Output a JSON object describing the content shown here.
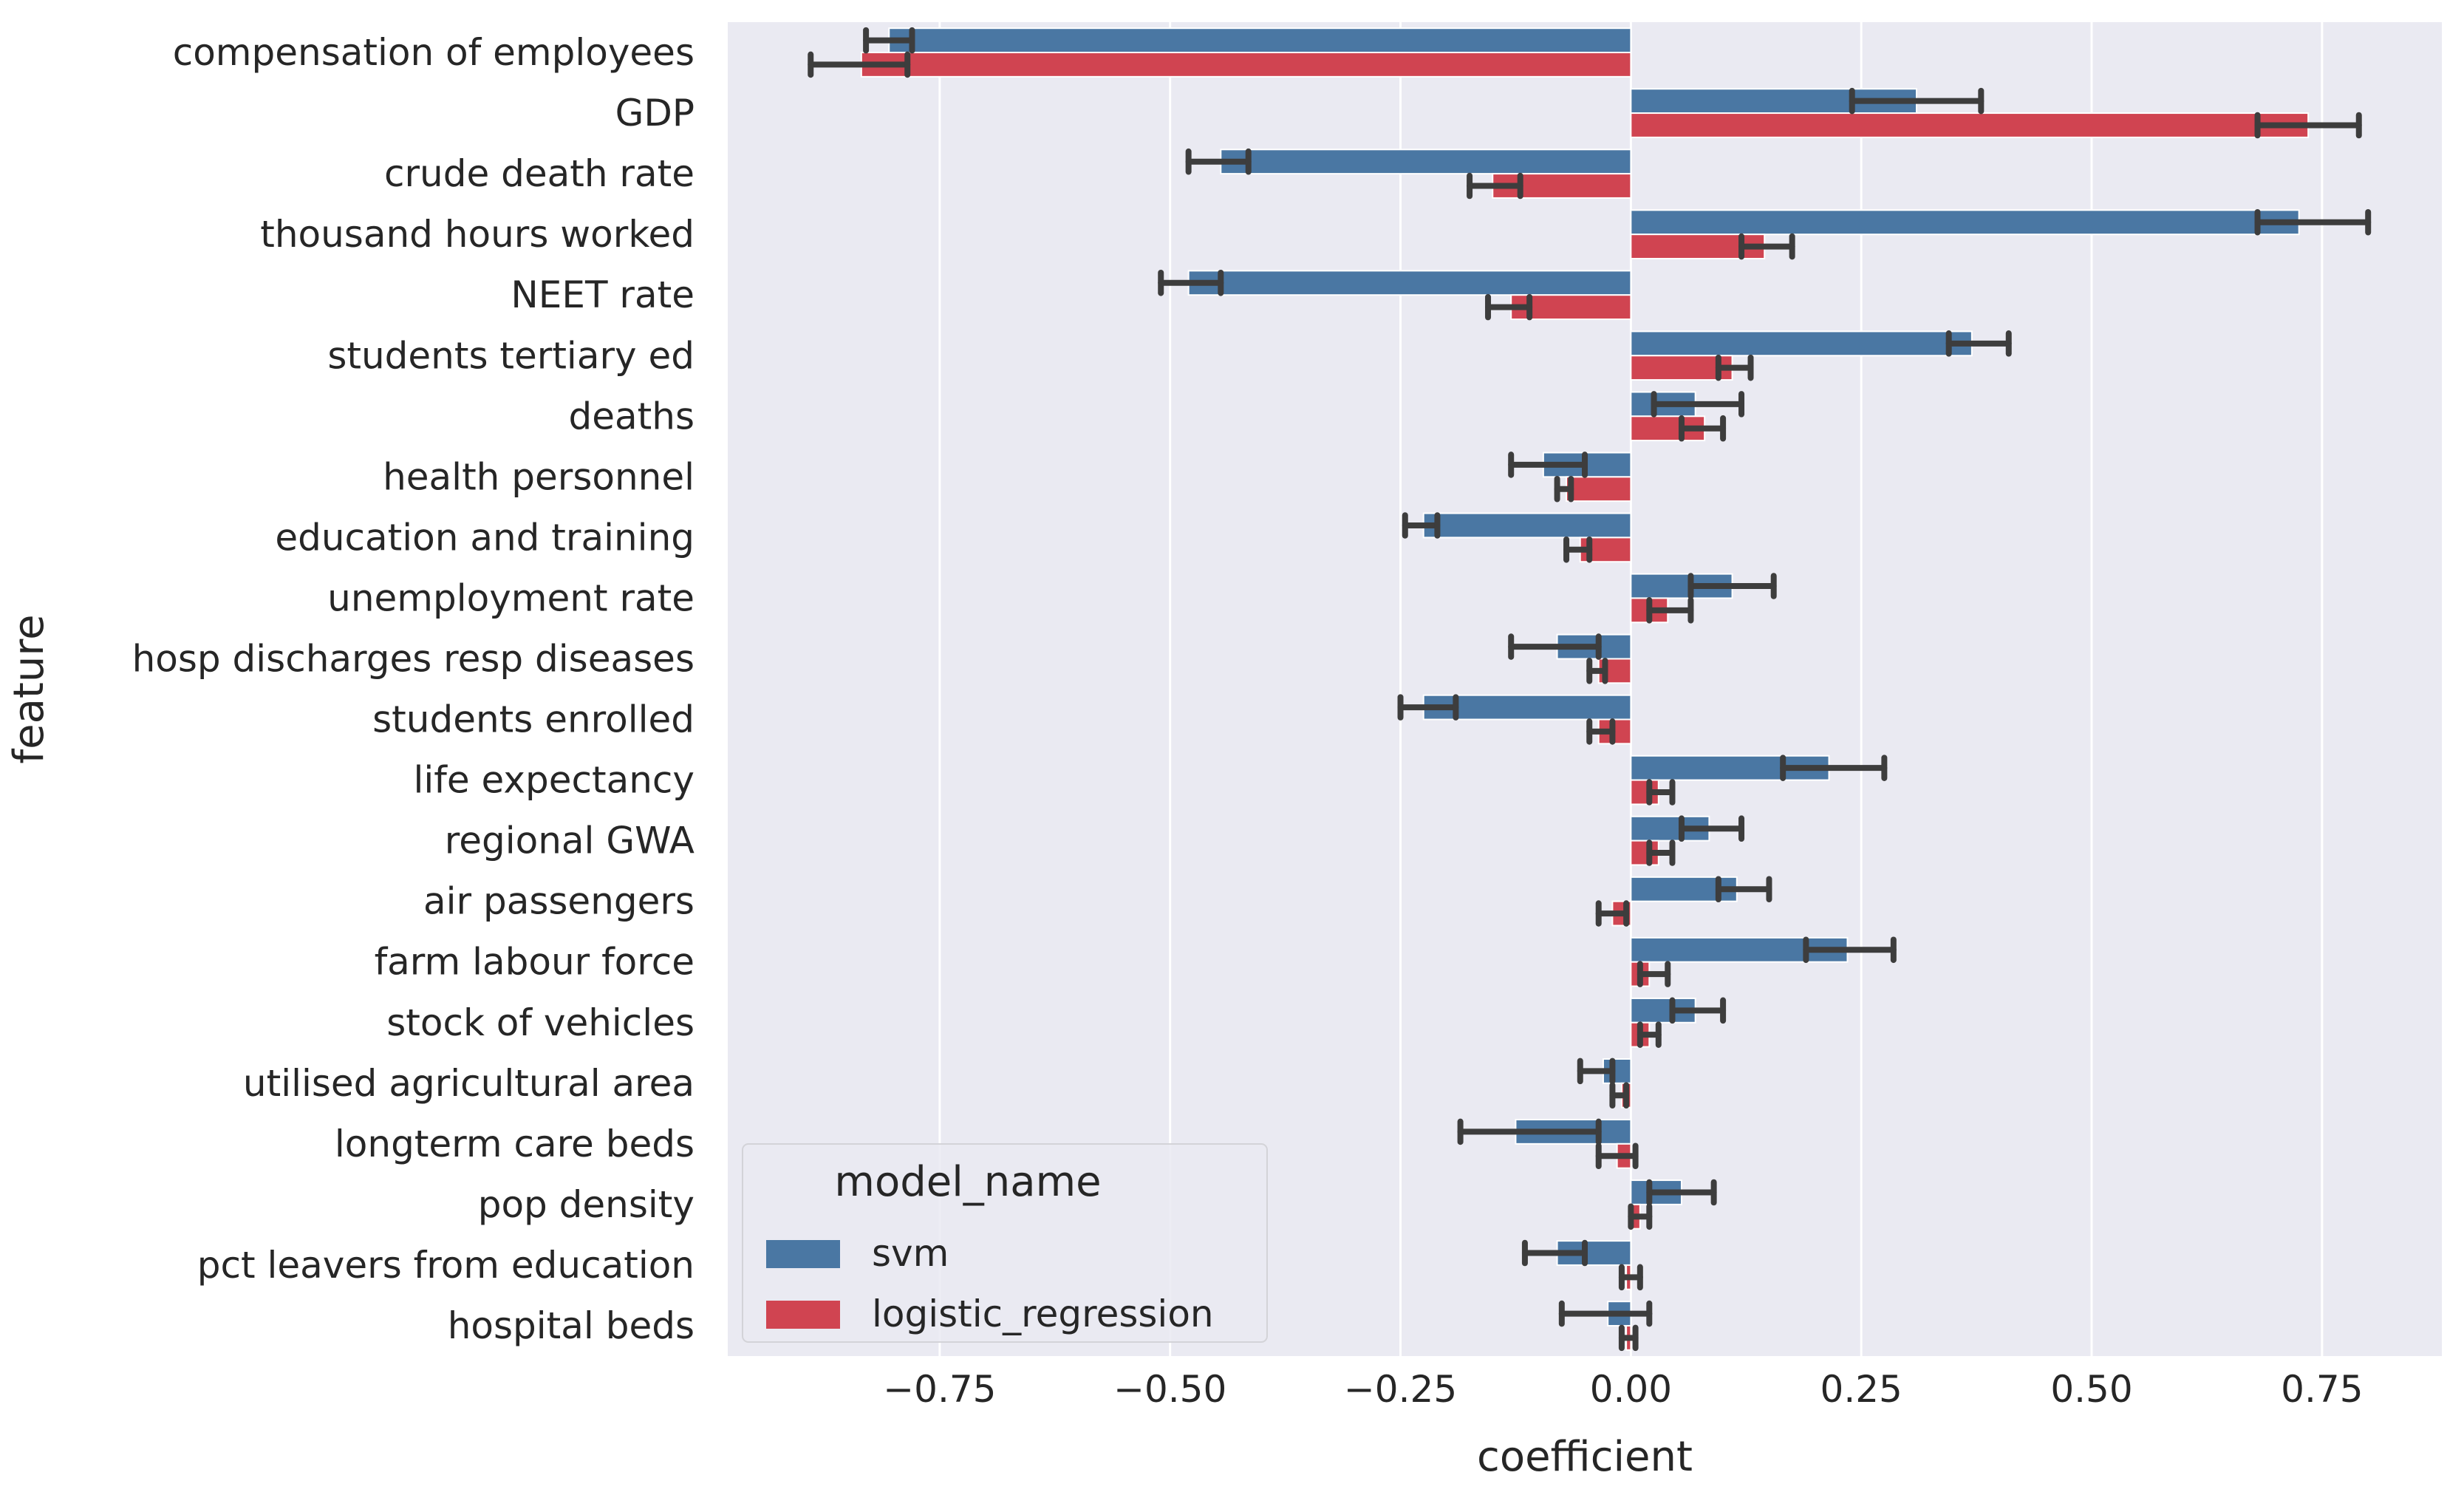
{
  "chart_data": {
    "type": "bar",
    "orientation": "horizontal",
    "xlabel": "coefficient",
    "ylabel": "feature",
    "xlim": [
      -0.98,
      0.88
    ],
    "xticks": [
      -0.75,
      -0.5,
      -0.25,
      0.0,
      0.25,
      0.5,
      0.75
    ],
    "xtick_labels": [
      "−0.75",
      "−0.50",
      "−0.25",
      "0.00",
      "0.25",
      "0.50",
      "0.75"
    ],
    "grid": true,
    "legend": {
      "title": "model_name",
      "position": "lower-left"
    },
    "categories": [
      "compensation of employees",
      "GDP",
      "crude death rate",
      "thousand hours worked",
      "NEET rate",
      "students tertiary ed",
      "deaths",
      "health personnel",
      "education and training",
      "unemployment rate",
      "hosp discharges resp diseases",
      "students enrolled",
      "life expectancy",
      "regional GWA",
      "air passengers",
      "farm labour force",
      "stock of vehicles",
      "utilised agricultural area",
      "longterm care beds",
      "pop density",
      "pct leavers from education",
      "hospital beds"
    ],
    "series": [
      {
        "name": "svm",
        "color": "#4a77a3",
        "values": [
          -0.805,
          0.31,
          -0.445,
          0.725,
          -0.48,
          0.37,
          0.07,
          -0.095,
          -0.225,
          0.11,
          -0.08,
          -0.225,
          0.215,
          0.085,
          0.115,
          0.235,
          0.07,
          -0.03,
          -0.125,
          0.055,
          -0.08,
          -0.025
        ],
        "ci": [
          [
            -0.83,
            -0.78
          ],
          [
            0.24,
            0.38
          ],
          [
            -0.48,
            -0.415
          ],
          [
            0.68,
            0.8
          ],
          [
            -0.51,
            -0.445
          ],
          [
            0.345,
            0.41
          ],
          [
            0.025,
            0.12
          ],
          [
            -0.13,
            -0.05
          ],
          [
            -0.245,
            -0.21
          ],
          [
            0.065,
            0.155
          ],
          [
            -0.13,
            -0.035
          ],
          [
            -0.25,
            -0.19
          ],
          [
            0.165,
            0.275
          ],
          [
            0.055,
            0.12
          ],
          [
            0.095,
            0.15
          ],
          [
            0.19,
            0.285
          ],
          [
            0.045,
            0.1
          ],
          [
            -0.055,
            -0.02
          ],
          [
            -0.185,
            -0.035
          ],
          [
            0.02,
            0.09
          ],
          [
            -0.115,
            -0.05
          ],
          [
            -0.075,
            0.02
          ]
        ]
      },
      {
        "name": "logistic_regression",
        "color": "#d04451",
        "values": [
          -0.835,
          0.735,
          -0.15,
          0.145,
          -0.13,
          0.11,
          0.08,
          -0.07,
          -0.055,
          0.04,
          -0.035,
          -0.035,
          0.03,
          0.03,
          -0.02,
          0.02,
          0.02,
          -0.01,
          -0.015,
          0.01,
          -0.005,
          -0.005
        ],
        "ci": [
          [
            -0.89,
            -0.785
          ],
          [
            0.68,
            0.79
          ],
          [
            -0.175,
            -0.12
          ],
          [
            0.12,
            0.175
          ],
          [
            -0.155,
            -0.11
          ],
          [
            0.095,
            0.13
          ],
          [
            0.055,
            0.1
          ],
          [
            -0.08,
            -0.065
          ],
          [
            -0.07,
            -0.045
          ],
          [
            0.02,
            0.065
          ],
          [
            -0.045,
            -0.028
          ],
          [
            -0.045,
            -0.02
          ],
          [
            0.02,
            0.045
          ],
          [
            0.02,
            0.045
          ],
          [
            -0.035,
            -0.005
          ],
          [
            0.01,
            0.04
          ],
          [
            0.01,
            0.03
          ],
          [
            -0.02,
            -0.005
          ],
          [
            -0.035,
            0.005
          ],
          [
            0.0,
            0.02
          ],
          [
            -0.01,
            0.01
          ],
          [
            -0.01,
            0.005
          ]
        ]
      }
    ]
  }
}
